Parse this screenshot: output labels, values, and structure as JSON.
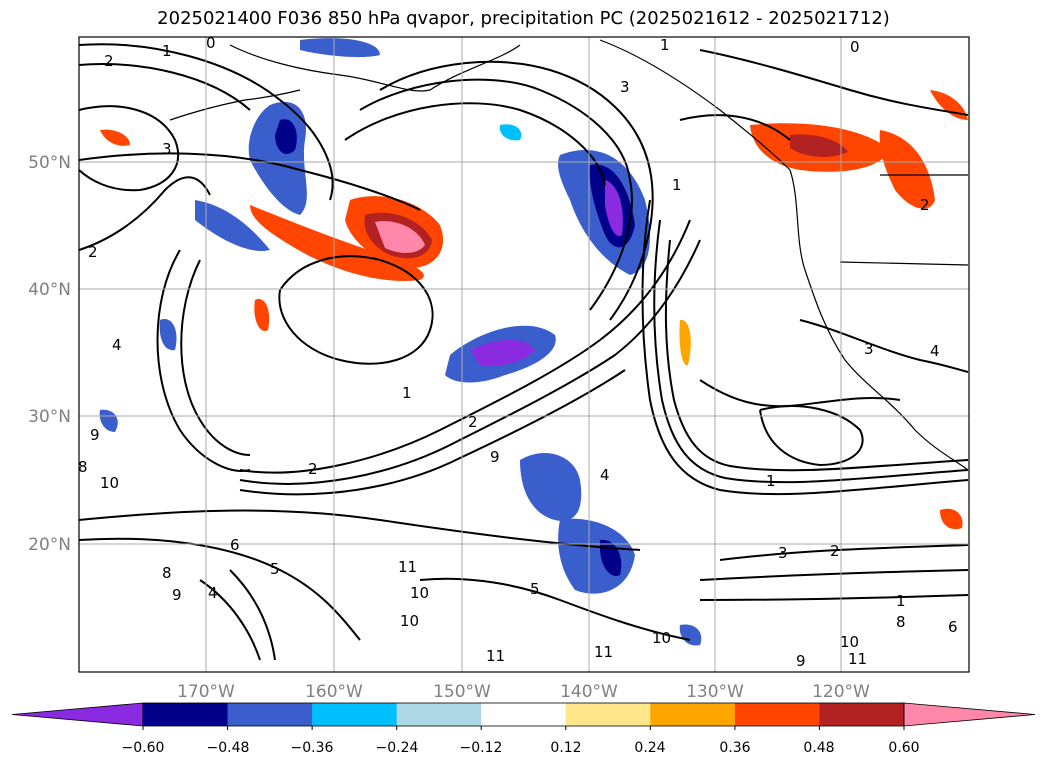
{
  "title": "2025021400 F036 850 hPa qvapor, precipitation PC (2025021612 - 2025021712)",
  "map": {
    "lon_labels": [
      "170°W",
      "160°W",
      "150°W",
      "140°W",
      "130°W",
      "120°W"
    ],
    "lat_labels": [
      "50°N",
      "40°N",
      "30°N",
      "20°N"
    ],
    "contour_labels": [
      "1",
      "2",
      "3",
      "0",
      "4",
      "2",
      "1",
      "2",
      "3",
      "9",
      "8",
      "10",
      "1",
      "2",
      "4",
      "1",
      "2",
      "1",
      "5",
      "6",
      "8",
      "9",
      "4",
      "5",
      "11",
      "10",
      "10",
      "11",
      "11",
      "10",
      "9",
      "10",
      "11",
      "9",
      "3",
      "2",
      "4",
      "3",
      "6",
      "8",
      "1",
      "0"
    ]
  },
  "colorbar": {
    "colors": [
      "#8a2be2",
      "#00008b",
      "#3a5fcd",
      "#00bfff",
      "#add8e6",
      "#ffffff",
      "#ffe68a",
      "#ffa500",
      "#ff4500",
      "#b22222",
      "#ff88aa"
    ],
    "tick_labels": [
      "−0.60",
      "−0.48",
      "−0.36",
      "−0.24",
      "−0.12",
      "0.12",
      "0.24",
      "0.36",
      "0.48",
      "0.60"
    ]
  }
}
